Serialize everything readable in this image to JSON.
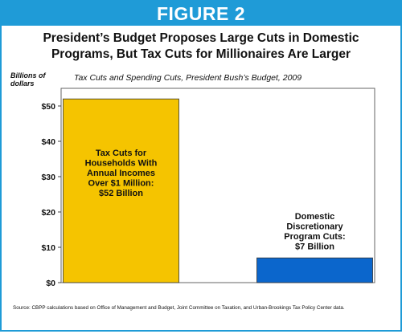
{
  "banner": {
    "text": "FIGURE 2"
  },
  "headline": {
    "line1": "President’s Budget Proposes Large Cuts in Domestic",
    "line2": "Programs, But Tax Cuts for Millionaires Are Larger"
  },
  "colors": {
    "banner": "#1f9bd7",
    "bar_tax_cuts": "#f5c400",
    "bar_domestic": "#0b66cc"
  },
  "chart_data": {
    "type": "bar",
    "title": "Tax Cuts and Spending Cuts, President Bush’s Budget, 2009",
    "ylabel": "Billions of dollars",
    "xlabel": "",
    "ylim": [
      0,
      55
    ],
    "y_ticks": [
      "$0",
      "$10",
      "$20",
      "$30",
      "$40",
      "$50"
    ],
    "y_tick_values": [
      0,
      10,
      20,
      30,
      40,
      50
    ],
    "grid": false,
    "bars": [
      {
        "value": 52,
        "color": "#f5c400",
        "label_lines": [
          "Tax Cuts for",
          "Households With",
          "Annual Incomes",
          "Over $1 Million:",
          "$52 Billion"
        ]
      },
      {
        "value": 7,
        "color": "#0b66cc",
        "label_lines": [
          "Domestic",
          "Discretionary",
          "Program Cuts:",
          "$7 Billion"
        ]
      }
    ]
  },
  "source": "Source: CBPP calculations based on Office of Management and Budget, Joint Committee on Taxation, and Urban-Brookings Tax Policy Center data."
}
